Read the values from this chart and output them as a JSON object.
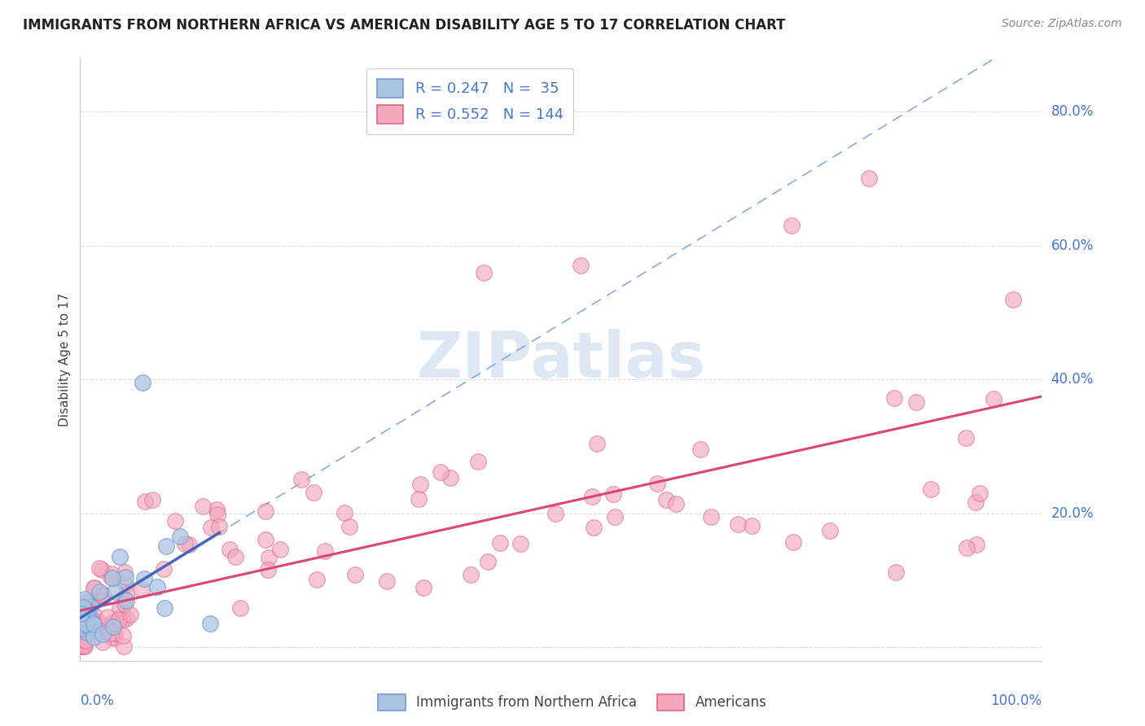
{
  "title": "IMMIGRANTS FROM NORTHERN AFRICA VS AMERICAN DISABILITY AGE 5 TO 17 CORRELATION CHART",
  "source": "Source: ZipAtlas.com",
  "ylabel": "Disability Age 5 to 17",
  "xlim": [
    0.0,
    1.0
  ],
  "ylim": [
    -0.02,
    0.88
  ],
  "legend_r1": "R = 0.247",
  "legend_n1": "N =  35",
  "legend_r2": "R = 0.552",
  "legend_n2": "N = 144",
  "blue_color": "#aac4e4",
  "blue_edge": "#7799cc",
  "pink_color": "#f4a8c0",
  "pink_edge": "#dd6688",
  "blue_line_color": "#4466bb",
  "pink_line_color": "#dd4477",
  "dash_line_color": "#88aadd",
  "grid_color": "#dddddd",
  "watermark_color": "#dde8f4",
  "title_color": "#222222",
  "axis_label_color": "#4477cc",
  "source_color": "#888888"
}
